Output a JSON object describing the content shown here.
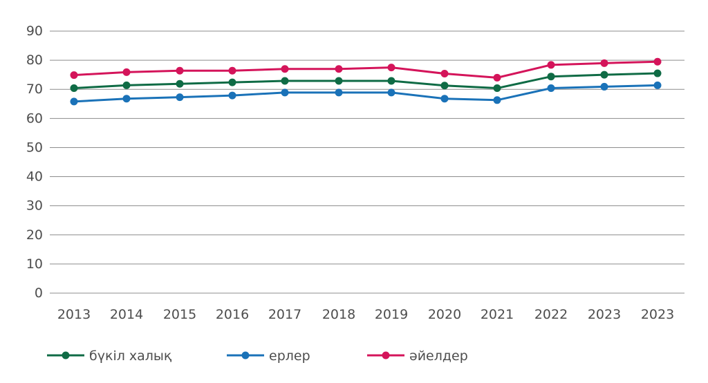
{
  "chart_data": {
    "type": "line",
    "categories": [
      "2013",
      "2014",
      "2015",
      "2016",
      "2017",
      "2018",
      "2019",
      "2020",
      "2021",
      "2022",
      "2023",
      "2023"
    ],
    "series": [
      {
        "name": "бүкіл халық",
        "color": "#0f6b45",
        "values": [
          70.4,
          71.4,
          71.9,
          72.4,
          72.9,
          72.9,
          72.9,
          71.3,
          70.4,
          74.4,
          75.0,
          75.5
        ]
      },
      {
        "name": "ерлер",
        "color": "#1a72b8",
        "values": [
          65.8,
          66.8,
          67.3,
          67.9,
          68.9,
          68.9,
          68.9,
          66.8,
          66.3,
          70.4,
          70.9,
          71.4
        ]
      },
      {
        "name": "әйелдер",
        "color": "#d4145a",
        "values": [
          74.9,
          75.9,
          76.4,
          76.4,
          77.0,
          77.0,
          77.5,
          75.4,
          74.0,
          78.4,
          79.0,
          79.5
        ]
      }
    ],
    "yticks": [
      "0",
      "10",
      "20",
      "30",
      "40",
      "50",
      "60",
      "70",
      "80",
      "90"
    ],
    "ylim": [
      0,
      90
    ],
    "grid": true,
    "legend_position": "bottom-left"
  }
}
